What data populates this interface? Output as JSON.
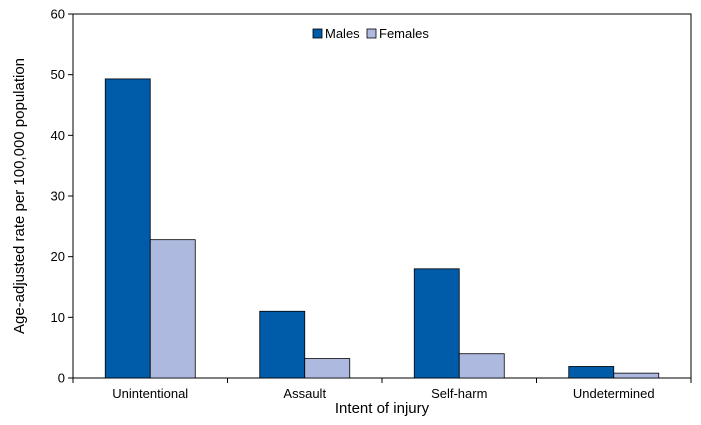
{
  "chart_data": {
    "type": "bar",
    "categories": [
      "Unintentional",
      "Assault",
      "Self-harm",
      "Undetermined"
    ],
    "series": [
      {
        "name": "Males",
        "values": [
          49.3,
          11.0,
          18.0,
          1.9
        ],
        "color": "#005ba8"
      },
      {
        "name": "Females",
        "values": [
          22.8,
          3.2,
          4.0,
          0.8
        ],
        "color": "#adb9de"
      }
    ],
    "xlabel": "Intent of injury",
    "ylabel": "Age-adjusted rate per 100,000 population",
    "ylim": [
      0,
      60
    ],
    "yticks": [
      0,
      10,
      20,
      30,
      40,
      50,
      60
    ],
    "grid": false,
    "legend_position": "top-center"
  }
}
